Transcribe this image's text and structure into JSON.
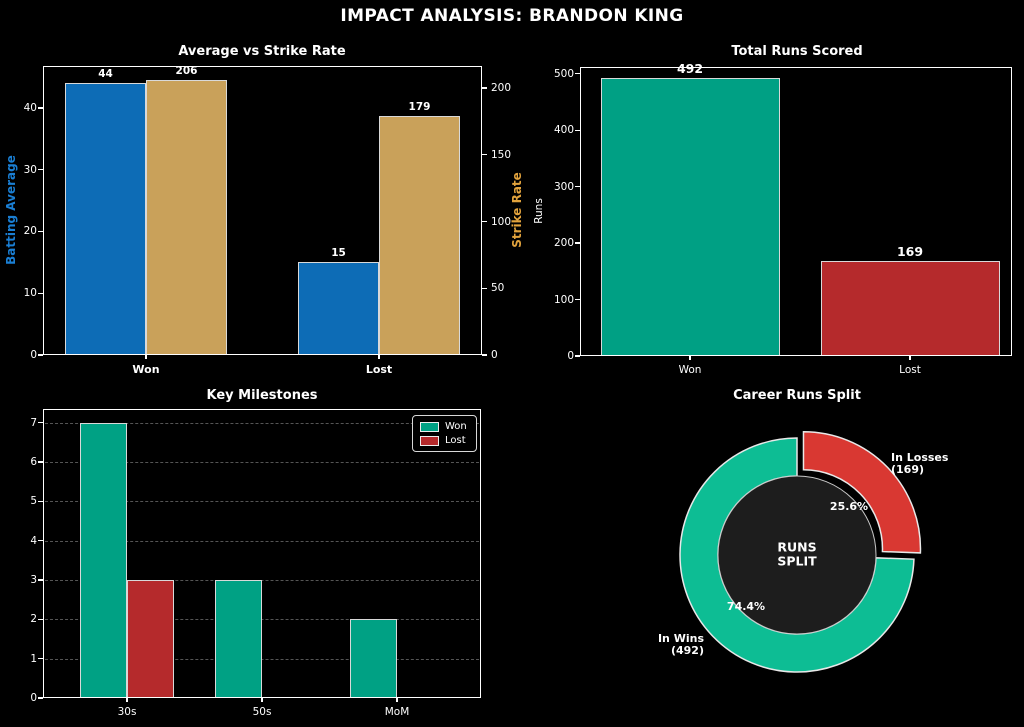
{
  "page": {
    "title": "IMPACT ANALYSIS: BRANDON KING"
  },
  "colors": {
    "background": "#000000",
    "text": "#ffffff",
    "bar_blue": "#0d6cb6",
    "bar_gold": "#c9a15a",
    "bar_teal": "#00a184",
    "bar_red": "#b52a2c",
    "donut_teal": "#0dbd94",
    "donut_red": "#d93832",
    "blue_label": "#1a7fd4",
    "gold_label": "#e2a33d",
    "grid": "#555555",
    "axis": "#ffffff",
    "bar_edge": "#d9d9d9",
    "donut_center": "#1d1d1d"
  },
  "chart_data": [
    {
      "id": "avg-vs-strike-rate",
      "type": "bar",
      "title": "Average vs Strike Rate",
      "categories": [
        "Won",
        "Lost"
      ],
      "series": [
        {
          "name": "Batting Average",
          "axis": "left",
          "color": "#0d6cb6",
          "values": [
            44,
            15
          ]
        },
        {
          "name": "Strike Rate",
          "axis": "right",
          "color": "#c9a15a",
          "values": [
            206,
            179
          ]
        }
      ],
      "left_axis": {
        "label": "Batting Average",
        "ticks": [
          0,
          10,
          20,
          30,
          40
        ],
        "max": 46.8
      },
      "right_axis": {
        "label": "Strike Rate",
        "ticks": [
          0,
          50,
          100,
          150,
          200
        ],
        "max": 216.5
      },
      "bar_labels": {
        "Won": [
          44,
          206
        ],
        "Lost": [
          15,
          179
        ]
      }
    },
    {
      "id": "total-runs-scored",
      "type": "bar",
      "title": "Total Runs Scored",
      "categories": [
        "Won",
        "Lost"
      ],
      "series": [
        {
          "name": "Runs",
          "values": [
            492,
            169
          ],
          "colors": [
            "#00a084",
            "#b52a2c"
          ]
        }
      ],
      "ylabel": "Runs",
      "yticks": [
        0,
        100,
        200,
        300,
        400,
        500
      ],
      "ymax": 512,
      "bar_labels": [
        492,
        169
      ]
    },
    {
      "id": "key-milestones",
      "type": "bar",
      "title": "Key Milestones",
      "categories": [
        "30s",
        "50s",
        "MoM"
      ],
      "series": [
        {
          "name": "Won",
          "color": "#00a184",
          "values": [
            7,
            3,
            2
          ]
        },
        {
          "name": "Lost",
          "color": "#b52a2c",
          "values": [
            3,
            0,
            0
          ]
        }
      ],
      "yticks": [
        0,
        1,
        2,
        3,
        4,
        5,
        6,
        7
      ],
      "ymax": 7.35,
      "grid": "horizontal-dashed",
      "legend": {
        "position": "upper-right",
        "entries": [
          {
            "label": "Won",
            "color": "#00a184"
          },
          {
            "label": "Lost",
            "color": "#b52a2c"
          }
        ]
      }
    },
    {
      "id": "career-runs-split",
      "type": "pie",
      "title": "Career Runs Split",
      "donut": true,
      "start_angle_deg": 90,
      "clockwise": true,
      "center_label_lines": [
        "RUNS",
        "SPLIT"
      ],
      "slices": [
        {
          "label_lines": [
            "In Losses",
            "(169)"
          ],
          "value": 169,
          "pct_label": "25.6%",
          "color": "#d93832",
          "exploded": true
        },
        {
          "label_lines": [
            "In Wins",
            "(492)"
          ],
          "value": 492,
          "pct_label": "74.4%",
          "color": "#0dbd94",
          "exploded": false
        }
      ]
    }
  ]
}
